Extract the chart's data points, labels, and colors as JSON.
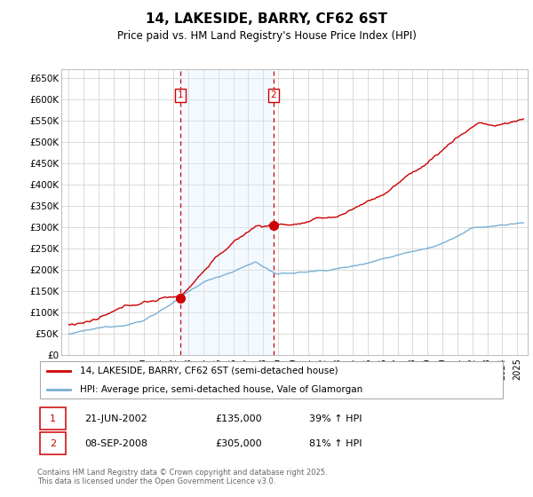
{
  "title": "14, LAKESIDE, BARRY, CF62 6ST",
  "subtitle": "Price paid vs. HM Land Registry's House Price Index (HPI)",
  "legend1": "14, LAKESIDE, BARRY, CF62 6ST (semi-detached house)",
  "legend2": "HPI: Average price, semi-detached house, Vale of Glamorgan",
  "footer": "Contains HM Land Registry data © Crown copyright and database right 2025.\nThis data is licensed under the Open Government Licence v3.0.",
  "transaction1_date": "21-JUN-2002",
  "transaction1_price": "£135,000",
  "transaction1_hpi": "39% ↑ HPI",
  "transaction2_date": "08-SEP-2008",
  "transaction2_price": "£305,000",
  "transaction2_hpi": "81% ↑ HPI",
  "ylim": [
    0,
    670000
  ],
  "yticks": [
    0,
    50000,
    100000,
    150000,
    200000,
    250000,
    300000,
    350000,
    400000,
    450000,
    500000,
    550000,
    600000,
    650000
  ],
  "ytick_labels": [
    "£0",
    "£50K",
    "£100K",
    "£150K",
    "£200K",
    "£250K",
    "£300K",
    "£350K",
    "£400K",
    "£450K",
    "£500K",
    "£550K",
    "£600K",
    "£650K"
  ],
  "grid_color": "#cccccc",
  "red_color": "#cc0000",
  "blue_color": "#7ab0d4",
  "shade_color": "#ddeeff",
  "transaction1_x": 2002.47,
  "transaction2_x": 2008.69,
  "transaction1_y": 135000,
  "transaction2_y": 305000,
  "xlim_left": 1994.5,
  "xlim_right": 2025.7
}
